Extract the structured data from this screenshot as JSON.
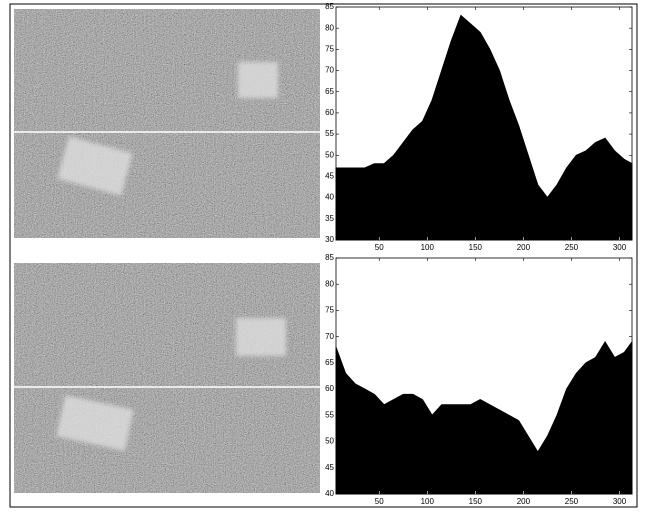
{
  "chart_data": [
    {
      "type": "area",
      "color": "#000000",
      "x": [
        5,
        15,
        25,
        35,
        45,
        55,
        65,
        75,
        85,
        95,
        105,
        115,
        125,
        135,
        145,
        155,
        165,
        175,
        185,
        195,
        205,
        215,
        225,
        235,
        245,
        255,
        265,
        275,
        285,
        295,
        305,
        313
      ],
      "values": [
        47,
        47,
        47,
        47,
        48,
        48,
        50,
        53,
        56,
        58,
        63,
        70,
        77,
        83,
        81,
        79,
        75,
        70,
        63,
        57,
        50,
        43,
        40,
        43,
        47,
        50,
        51,
        53,
        54,
        51,
        49,
        48
      ],
      "xlim": [
        5,
        313
      ],
      "xticks": [
        50,
        100,
        150,
        200,
        250,
        300
      ],
      "ylim": [
        30,
        85
      ],
      "yticks": [
        30,
        35,
        40,
        45,
        50,
        55,
        60,
        65,
        70,
        75,
        80,
        85
      ]
    },
    {
      "type": "area",
      "color": "#000000",
      "x": [
        5,
        15,
        25,
        35,
        45,
        55,
        65,
        75,
        85,
        95,
        105,
        115,
        125,
        135,
        145,
        155,
        165,
        175,
        185,
        195,
        205,
        215,
        225,
        235,
        245,
        255,
        265,
        275,
        285,
        295,
        305,
        313
      ],
      "values": [
        68,
        63,
        61,
        60,
        59,
        57,
        58,
        59,
        59,
        58,
        55,
        57,
        57,
        57,
        57,
        58,
        57,
        56,
        55,
        54,
        51,
        48,
        51,
        55,
        60,
        63,
        65,
        66,
        69,
        66,
        67,
        69
      ],
      "xlim": [
        5,
        313
      ],
      "xticks": [
        50,
        100,
        150,
        200,
        250,
        300
      ],
      "ylim": [
        40,
        85
      ],
      "yticks": [
        40,
        45,
        50,
        55,
        60,
        65,
        70,
        75,
        80,
        85
      ]
    }
  ]
}
